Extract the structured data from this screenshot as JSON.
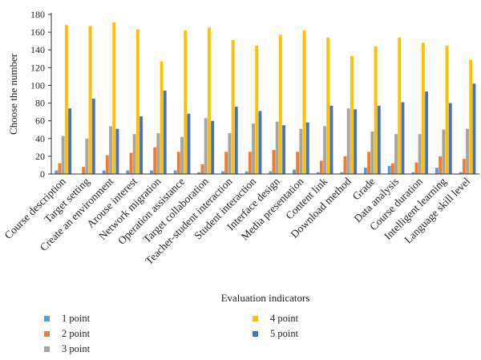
{
  "chart_data": {
    "type": "bar",
    "xlabel": "Evaluation indicators",
    "ylabel": "Choose the number",
    "ylim": [
      0,
      180
    ],
    "yticks": [
      0,
      20,
      40,
      60,
      80,
      100,
      120,
      140,
      160,
      180
    ],
    "grid": false,
    "legend_position": "bottom",
    "categories": [
      "Course description",
      "Target setting",
      "Create an environment",
      "Arouse interest",
      "Network migration",
      "Operation assistance",
      "Target collaboration",
      "Teacher-student interaction",
      "Student interaction",
      "Interface design",
      "Media presentation",
      "Content link",
      "Download method",
      "Grade",
      "Data analysis",
      "Course duration",
      "Intelligent learning",
      "Language skill level"
    ],
    "series": [
      {
        "name": "1 point",
        "color": "#5b9bd5",
        "values": [
          4,
          0,
          4,
          4,
          4,
          4,
          2,
          3,
          3,
          3,
          5,
          2,
          2,
          7,
          9,
          2,
          7,
          2
        ]
      },
      {
        "name": "2 point",
        "color": "#ed7d31",
        "values": [
          12,
          8,
          21,
          24,
          30,
          25,
          11,
          25,
          25,
          27,
          25,
          15,
          20,
          25,
          12,
          13,
          20,
          17
        ]
      },
      {
        "name": "3 point",
        "color": "#a5a5a5",
        "values": [
          43,
          40,
          54,
          45,
          46,
          42,
          63,
          46,
          57,
          59,
          51,
          54,
          74,
          48,
          45,
          45,
          50,
          51
        ]
      },
      {
        "name": "4 point",
        "color": "#ffc000",
        "values": [
          168,
          167,
          171,
          163,
          127,
          162,
          165,
          151,
          145,
          157,
          162,
          154,
          133,
          144,
          154,
          148,
          145,
          129
        ]
      },
      {
        "name": "5 point",
        "color": "#4472c4",
        "values": [
          74,
          85,
          51,
          65,
          94,
          68,
          60,
          76,
          71,
          55,
          58,
          77,
          73,
          77,
          81,
          93,
          80,
          102
        ]
      }
    ]
  }
}
